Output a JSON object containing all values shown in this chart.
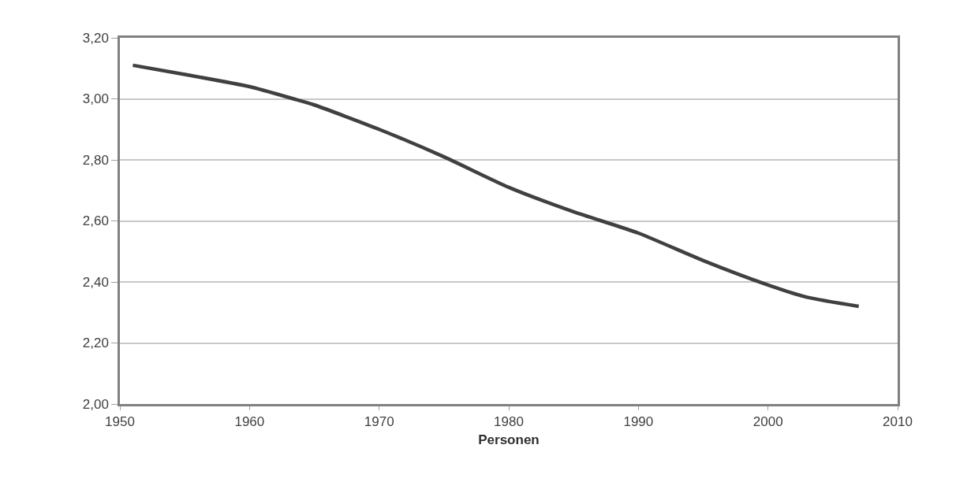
{
  "chart_data": {
    "type": "line",
    "xlabel": "Personen",
    "x": [
      1951,
      1955,
      1960,
      1963.4,
      1965,
      1970,
      1975,
      1980,
      1985,
      1990,
      1995,
      2000,
      2003,
      2007
    ],
    "series": [
      {
        "color": "#404040",
        "values": [
          3.11,
          3.08,
          3.04,
          3.0,
          2.98,
          2.9,
          2.81,
          2.71,
          2.63,
          2.56,
          2.47,
          2.39,
          2.35,
          2.32
        ]
      }
    ],
    "xlim": [
      1950,
      2010
    ],
    "xticks": [
      1950,
      1960,
      1970,
      1980,
      1990,
      2000,
      2010
    ],
    "ylim": [
      2.0,
      3.2
    ],
    "yticks": [
      {
        "value": 2.0,
        "label": "2,00"
      },
      {
        "value": 2.2,
        "label": "2,20"
      },
      {
        "value": 2.4,
        "label": "2,40"
      },
      {
        "value": 2.6,
        "label": "2,60"
      },
      {
        "value": 2.8,
        "label": "2,80"
      },
      {
        "value": 3.0,
        "label": "3,00"
      },
      {
        "value": 3.2,
        "label": "3,20"
      }
    ],
    "grid": "y",
    "marker": "none",
    "line_style": "solid"
  }
}
